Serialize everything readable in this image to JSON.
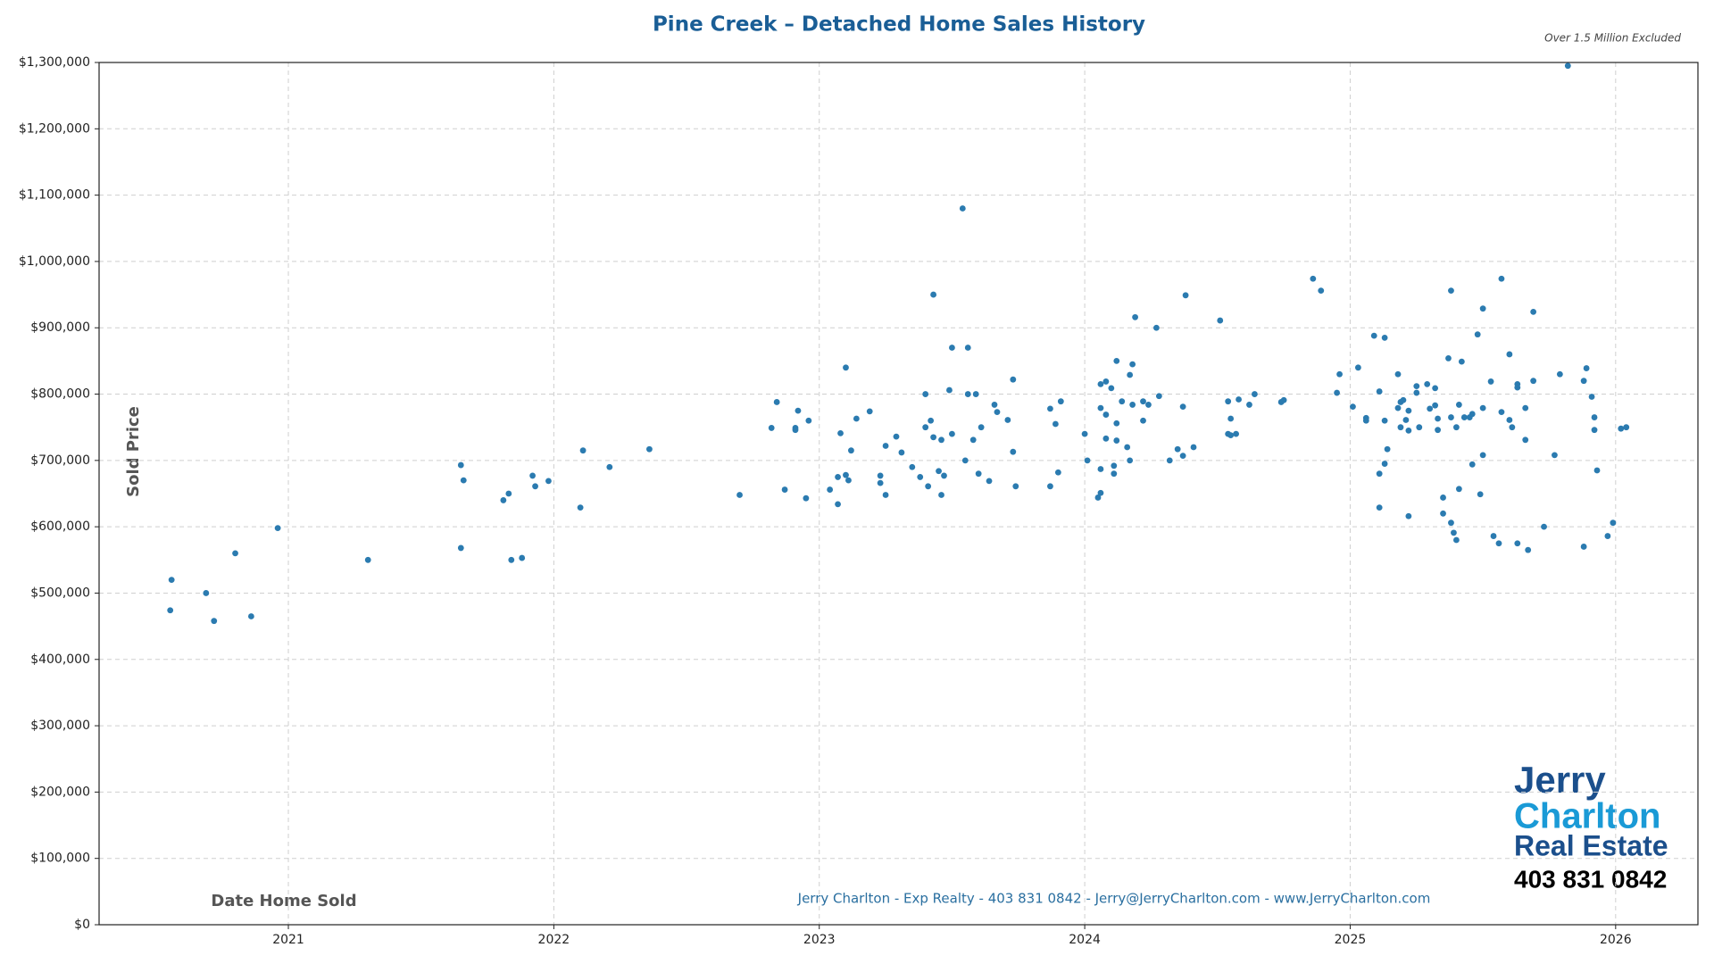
{
  "chart_data": {
    "type": "scatter",
    "title": "Pine Creek – Detached Home Sales History",
    "subtitle": "Over 1.5 Million Excluded",
    "x_label": "Date Home Sold",
    "y_label": "Sold Price",
    "footer": "Jerry Charlton - Exp Realty - 403 831 0842 - Jerry@JerryCharlton.com - www.JerryCharlton.com",
    "logo_lines": [
      "Jerry",
      "Charlton",
      "Real Estate",
      "403 831 0842"
    ],
    "color": "#2b7bb0",
    "grid": true,
    "xlim": [
      2020.287,
      2026.31
    ],
    "ylim": [
      0,
      1300000
    ],
    "xticks": [
      2021,
      2022,
      2023,
      2024,
      2025,
      2026
    ],
    "yticks": [
      {
        "value": 0,
        "label": "$0"
      },
      {
        "value": 100000,
        "label": "$100,000"
      },
      {
        "value": 200000,
        "label": "$200,000"
      },
      {
        "value": 300000,
        "label": "$300,000"
      },
      {
        "value": 400000,
        "label": "$400,000"
      },
      {
        "value": 500000,
        "label": "$500,000"
      },
      {
        "value": 600000,
        "label": "$600,000"
      },
      {
        "value": 700000,
        "label": "$700,000"
      },
      {
        "value": 800000,
        "label": "$800,000"
      },
      {
        "value": 900000,
        "label": "$900,000"
      },
      {
        "value": 1000000,
        "label": "$1,000,000"
      },
      {
        "value": 1100000,
        "label": "$1,100,000"
      },
      {
        "value": 1200000,
        "label": "$1,200,000"
      },
      {
        "value": 1300000,
        "label": "$1,300,000"
      }
    ],
    "x": [
      2020.555,
      2020.56,
      2020.69,
      2020.72,
      2020.8,
      2020.86,
      2020.96,
      2021.3,
      2021.65,
      2021.65,
      2021.66,
      2021.81,
      2021.83,
      2021.84,
      2021.88,
      2021.92,
      2021.93,
      2021.98,
      2022.1,
      2022.11,
      2022.21,
      2022.36,
      2022.7,
      2022.82,
      2022.84,
      2022.87,
      2022.91,
      2022.91,
      2022.92,
      2022.95,
      2022.96,
      2023.04,
      2023.07,
      2023.07,
      2023.08,
      2023.1,
      2023.1,
      2023.11,
      2023.12,
      2023.14,
      2023.19,
      2023.23,
      2023.23,
      2023.25,
      2023.25,
      2023.29,
      2023.31,
      2023.35,
      2023.38,
      2023.4,
      2023.4,
      2023.41,
      2023.42,
      2023.43,
      2023.43,
      2023.45,
      2023.46,
      2023.46,
      2023.47,
      2023.49,
      2023.5,
      2023.5,
      2023.54,
      2023.55,
      2023.56,
      2023.56,
      2023.58,
      2023.59,
      2023.6,
      2023.61,
      2023.64,
      2023.66,
      2023.67,
      2023.71,
      2023.73,
      2023.73,
      2023.74,
      2023.87,
      2023.87,
      2023.89,
      2023.9,
      2023.91,
      2024.0,
      2024.01,
      2024.05,
      2024.06,
      2024.06,
      2024.06,
      2024.06,
      2024.08,
      2024.08,
      2024.08,
      2024.1,
      2024.11,
      2024.11,
      2024.12,
      2024.12,
      2024.12,
      2024.14,
      2024.16,
      2024.17,
      2024.17,
      2024.18,
      2024.19,
      2024.18,
      2024.22,
      2024.22,
      2024.24,
      2024.27,
      2024.28,
      2024.32,
      2024.35,
      2024.38,
      2024.37,
      2024.37,
      2024.41,
      2024.51,
      2024.54,
      2024.54,
      2024.55,
      2024.55,
      2024.57,
      2024.58,
      2024.62,
      2024.64,
      2024.74,
      2024.75,
      2024.86,
      2024.89,
      2024.95,
      2024.96,
      2025.01,
      2025.03,
      2025.06,
      2025.06,
      2025.09,
      2025.11,
      2025.11,
      2025.11,
      2025.13,
      2025.13,
      2025.13,
      2025.14,
      2025.18,
      2025.18,
      2025.19,
      2025.19,
      2025.2,
      2025.21,
      2025.22,
      2025.22,
      2025.22,
      2025.25,
      2025.25,
      2025.26,
      2025.29,
      2025.3,
      2025.32,
      2025.32,
      2025.33,
      2025.33,
      2025.35,
      2025.35,
      2025.37,
      2025.38,
      2025.38,
      2025.38,
      2025.39,
      2025.4,
      2025.4,
      2025.41,
      2025.41,
      2025.42,
      2025.43,
      2025.45,
      2025.46,
      2025.46,
      2025.48,
      2025.49,
      2025.5,
      2025.5,
      2025.5,
      2025.53,
      2025.54,
      2025.56,
      2025.57,
      2025.57,
      2025.6,
      2025.6,
      2025.61,
      2025.63,
      2025.63,
      2025.63,
      2025.66,
      2025.66,
      2025.67,
      2025.69,
      2025.69,
      2025.73,
      2025.77,
      2025.79,
      2025.82,
      2025.88,
      2025.88,
      2025.89,
      2025.91,
      2025.92,
      2025.92,
      2025.93,
      2025.97,
      2025.99,
      2026.02,
      2026.04
    ],
    "values": [
      474000,
      520000,
      500000,
      458000,
      560000,
      465000,
      598000,
      550000,
      693000,
      568000,
      670000,
      640000,
      650000,
      550000,
      553000,
      677000,
      661000,
      669000,
      629000,
      715000,
      690000,
      717000,
      648000,
      749000,
      788000,
      656000,
      749000,
      746000,
      775000,
      643000,
      760000,
      656000,
      675000,
      634000,
      741000,
      840000,
      678000,
      670000,
      715000,
      763000,
      774000,
      677000,
      666000,
      648000,
      722000,
      736000,
      712000,
      690000,
      675000,
      750000,
      800000,
      661000,
      760000,
      950000,
      735000,
      684000,
      648000,
      731000,
      677000,
      806000,
      740000,
      870000,
      1080000,
      700000,
      870000,
      800000,
      731000,
      800000,
      680000,
      750000,
      669000,
      784000,
      773000,
      761000,
      713000,
      822000,
      661000,
      778000,
      661000,
      755000,
      682000,
      789000,
      740000,
      700000,
      644000,
      651000,
      687000,
      815000,
      779000,
      733000,
      819000,
      769000,
      809000,
      692000,
      680000,
      730000,
      756000,
      850000,
      789000,
      720000,
      700000,
      829000,
      845000,
      916000,
      784000,
      789000,
      760000,
      784000,
      900000,
      797000,
      700000,
      717000,
      949000,
      781000,
      707000,
      720000,
      911000,
      740000,
      789000,
      763000,
      738000,
      740000,
      792000,
      784000,
      800000,
      788000,
      791000,
      974000,
      956000,
      802000,
      830000,
      781000,
      840000,
      764000,
      760000,
      888000,
      680000,
      804000,
      629000,
      885000,
      695000,
      760000,
      717000,
      830000,
      779000,
      788000,
      750000,
      791000,
      761000,
      745000,
      616000,
      775000,
      812000,
      802000,
      750000,
      815000,
      778000,
      809000,
      783000,
      746000,
      763000,
      644000,
      620000,
      854000,
      606000,
      956000,
      765000,
      591000,
      750000,
      580000,
      784000,
      657000,
      849000,
      765000,
      765000,
      770000,
      694000,
      890000,
      649000,
      779000,
      929000,
      708000,
      819000,
      586000,
      575000,
      974000,
      773000,
      860000,
      761000,
      750000,
      815000,
      810000,
      575000,
      779000,
      731000,
      565000,
      924000,
      820000,
      600000,
      708000,
      830000,
      1295000,
      570000,
      820000,
      839000,
      796000,
      765000,
      746000,
      685000,
      586000,
      606000,
      748000,
      750000
    ]
  }
}
